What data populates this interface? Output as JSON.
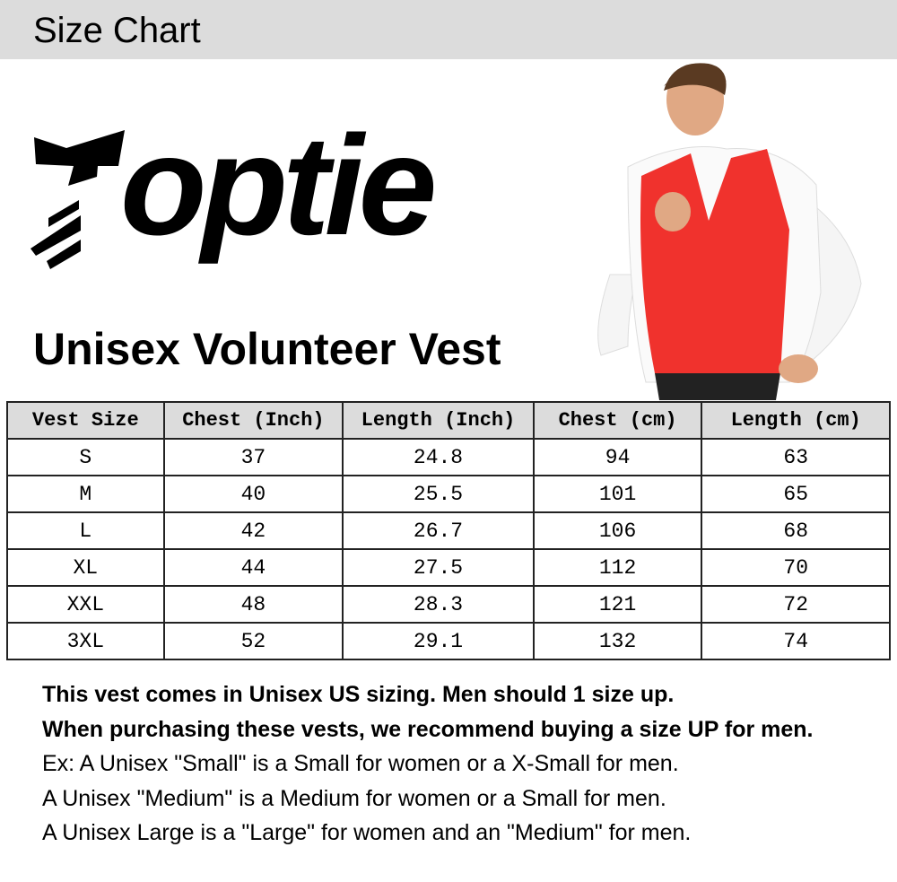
{
  "header": {
    "title": "Size Chart"
  },
  "brand": {
    "logo_text": "Toptie"
  },
  "product": {
    "title": "Unisex Volunteer Vest",
    "vest_color": "#f0322d"
  },
  "table": {
    "headers": [
      "Vest Size",
      "Chest (Inch)",
      "Length (Inch)",
      "Chest (cm)",
      "Length (cm)"
    ],
    "rows": [
      [
        "S",
        "37",
        "24.8",
        "94",
        "63"
      ],
      [
        "M",
        "40",
        "25.5",
        "101",
        "65"
      ],
      [
        "L",
        "42",
        "26.7",
        "106",
        "68"
      ],
      [
        "XL",
        "44",
        "27.5",
        "112",
        "70"
      ],
      [
        "XXL",
        "48",
        "28.3",
        "121",
        "72"
      ],
      [
        "3XL",
        "52",
        "29.1",
        "132",
        "74"
      ]
    ]
  },
  "notes": {
    "bold": [
      "This vest comes in Unisex US sizing. Men should 1 size up.",
      "When purchasing these vests, we recommend buying a size UP for men."
    ],
    "regular": [
      "Ex: A Unisex \"Small\" is a Small for women or a X-Small for men.",
      "A Unisex \"Medium\" is a Medium for women or a Small for men.",
      "A Unisex Large is a \"Large\" for women and an \"Medium\" for men."
    ]
  }
}
